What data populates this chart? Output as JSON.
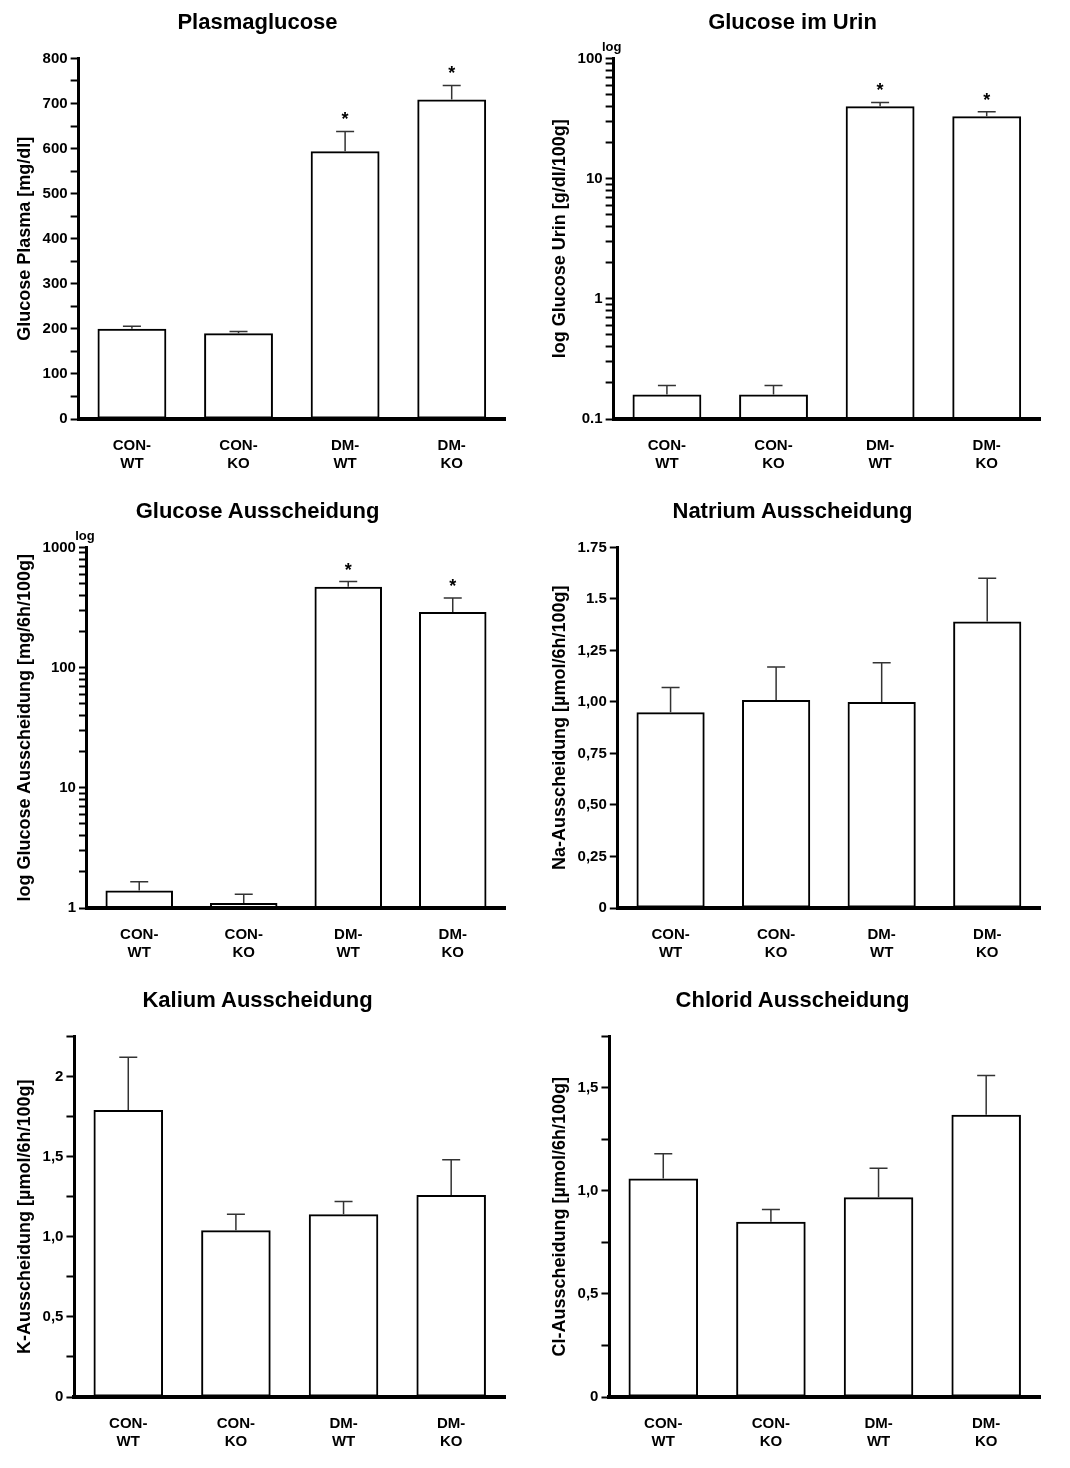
{
  "chart_data": [
    {
      "type": "bar",
      "title": "Plasmaglucose",
      "ylabel": "Glucose Plasma [mg/dl]",
      "categories": [
        "CON-WT",
        "CON-KO",
        "DM-WT",
        "DM-KO"
      ],
      "values": [
        200,
        190,
        594,
        709
      ],
      "errors": [
        6,
        4,
        44,
        31
      ],
      "color": "#000000",
      "ylim": [
        0,
        800
      ],
      "yticks": [
        0,
        {
          "value": 50,
          "label": null
        },
        100,
        {
          "value": 150,
          "label": null
        },
        200,
        {
          "value": 250,
          "label": null
        },
        300,
        {
          "value": 350,
          "label": null
        },
        400,
        {
          "value": 450,
          "label": null
        },
        500,
        {
          "value": 550,
          "label": null
        },
        600,
        {
          "value": 650,
          "label": null
        },
        700,
        {
          "value": 750,
          "label": null
        },
        800
      ],
      "grid": false,
      "annotations": [
        {
          "text": "*",
          "x": "DM-WT",
          "y": 638
        },
        {
          "text": "*",
          "x": "DM-KO",
          "y": 740
        }
      ]
    },
    {
      "type": "bar",
      "title": "Glucose im Urin",
      "ylabel": "log Glucose Urin [g/dl/100g]",
      "categories": [
        "CON-WT",
        "CON-KO",
        "DM-WT",
        "DM-KO"
      ],
      "values": [
        0.16,
        0.16,
        40,
        33
      ],
      "errors": [
        0.03,
        0.03,
        3,
        3
      ],
      "color": "#000000",
      "log": true,
      "ylim": [
        0.1,
        100
      ],
      "yticks": [
        0.1,
        {
          "value": 0.2,
          "label": null
        },
        {
          "value": 0.3,
          "label": null
        },
        {
          "value": 0.4,
          "label": null
        },
        {
          "value": 0.5,
          "label": null
        },
        {
          "value": 0.6,
          "label": null
        },
        {
          "value": 0.7,
          "label": null
        },
        {
          "value": 0.8,
          "label": null
        },
        {
          "value": 0.9,
          "label": null
        },
        1,
        {
          "value": 2,
          "label": null
        },
        {
          "value": 3,
          "label": null
        },
        {
          "value": 4,
          "label": null
        },
        {
          "value": 5,
          "label": null
        },
        {
          "value": 6,
          "label": null
        },
        {
          "value": 7,
          "label": null
        },
        {
          "value": 8,
          "label": null
        },
        {
          "value": 9,
          "label": null
        },
        10,
        {
          "value": 20,
          "label": null
        },
        {
          "value": 30,
          "label": null
        },
        {
          "value": 40,
          "label": null
        },
        {
          "value": 50,
          "label": null
        },
        {
          "value": 60,
          "label": null
        },
        {
          "value": 70,
          "label": null
        },
        {
          "value": 80,
          "label": null
        },
        {
          "value": 90,
          "label": null
        },
        100
      ],
      "grid": false,
      "annotations": [
        "log",
        {
          "text": "*",
          "x": "DM-WT",
          "y": 43
        },
        {
          "text": "*",
          "x": "DM-KO",
          "y": 36
        }
      ]
    },
    {
      "type": "bar",
      "title": "Glucose Ausscheidung",
      "ylabel": "log Glucose Ausscheidung [mg/6h/100g]",
      "categories": [
        "CON-WT",
        "CON-KO",
        "DM-WT",
        "DM-KO"
      ],
      "values": [
        1.4,
        1.1,
        470,
        290
      ],
      "errors": [
        0.25,
        0.2,
        50,
        90
      ],
      "color": "#000000",
      "log": true,
      "ylim": [
        1,
        1000
      ],
      "yticks": [
        1,
        {
          "value": 2,
          "label": null
        },
        {
          "value": 3,
          "label": null
        },
        {
          "value": 4,
          "label": null
        },
        {
          "value": 5,
          "label": null
        },
        {
          "value": 6,
          "label": null
        },
        {
          "value": 7,
          "label": null
        },
        {
          "value": 8,
          "label": null
        },
        {
          "value": 9,
          "label": null
        },
        10,
        {
          "value": 20,
          "label": null
        },
        {
          "value": 30,
          "label": null
        },
        {
          "value": 40,
          "label": null
        },
        {
          "value": 50,
          "label": null
        },
        {
          "value": 60,
          "label": null
        },
        {
          "value": 70,
          "label": null
        },
        {
          "value": 80,
          "label": null
        },
        {
          "value": 90,
          "label": null
        },
        100,
        {
          "value": 200,
          "label": null
        },
        {
          "value": 300,
          "label": null
        },
        {
          "value": 400,
          "label": null
        },
        {
          "value": 500,
          "label": null
        },
        {
          "value": 600,
          "label": null
        },
        {
          "value": 700,
          "label": null
        },
        {
          "value": 800,
          "label": null
        },
        {
          "value": 900,
          "label": null
        },
        1000
      ],
      "grid": false,
      "annotations": [
        "log",
        {
          "text": "*",
          "x": "DM-WT",
          "y": 520
        },
        {
          "text": "*",
          "x": "DM-KO",
          "y": 380
        }
      ]
    },
    {
      "type": "bar",
      "title": "Natrium Ausscheidung",
      "ylabel": "Na-Ausscheidung [µmol/6h/100g]",
      "categories": [
        "CON-WT",
        "CON-KO",
        "DM-WT",
        "DM-KO"
      ],
      "values": [
        0.95,
        1.01,
        1.0,
        1.39
      ],
      "errors": [
        0.12,
        0.16,
        0.19,
        0.21
      ],
      "color": "#000000",
      "ylim": [
        0,
        1.75
      ],
      "yticks": [
        0,
        {
          "value": 0.25,
          "label": "0,25"
        },
        {
          "value": 0.5,
          "label": "0,50"
        },
        {
          "value": 0.75,
          "label": "0,75"
        },
        {
          "value": 1,
          "label": "1,00"
        },
        {
          "value": 1.25,
          "label": "1,25"
        },
        1.5,
        1.75
      ],
      "grid": false
    },
    {
      "type": "bar",
      "title": "Kalium Ausscheidung",
      "ylabel": "K-Ausscheidung [µmol/6h/100g]",
      "categories": [
        "CON-WT",
        "CON-KO",
        "DM-WT",
        "DM-KO"
      ],
      "values": [
        1.79,
        1.04,
        1.14,
        1.26
      ],
      "errors": [
        0.33,
        0.1,
        0.08,
        0.22
      ],
      "color": "#000000",
      "ylim": [
        0,
        2.25
      ],
      "yticks": [
        0,
        {
          "value": 0.25,
          "label": null
        },
        {
          "value": 0.5,
          "label": "0,5"
        },
        {
          "value": 0.75,
          "label": null
        },
        {
          "value": 1,
          "label": "1,0"
        },
        {
          "value": 1.25,
          "label": null
        },
        {
          "value": 1.5,
          "label": "1,5"
        },
        {
          "value": 1.75,
          "label": null
        },
        2,
        {
          "value": 2.25,
          "label": null
        }
      ],
      "grid": false
    },
    {
      "type": "bar",
      "title": "Chlorid Ausscheidung",
      "ylabel": "Cl-Ausscheidung [µmol/6h/100g]",
      "categories": [
        "CON-WT",
        "CON-KO",
        "DM-WT",
        "DM-KO"
      ],
      "values": [
        1.06,
        0.85,
        0.97,
        1.37
      ],
      "errors": [
        0.12,
        0.06,
        0.14,
        0.19
      ],
      "color": "#000000",
      "ylim": [
        0,
        1.75
      ],
      "yticks": [
        0,
        {
          "value": 0.25,
          "label": null
        },
        {
          "value": 0.5,
          "label": "0,5"
        },
        {
          "value": 0.75,
          "label": null
        },
        {
          "value": 1,
          "label": "1,0"
        },
        {
          "value": 1.25,
          "label": null
        },
        {
          "value": 1.5,
          "label": "1,5"
        },
        {
          "value": 1.75,
          "label": null
        }
      ],
      "grid": false
    }
  ]
}
